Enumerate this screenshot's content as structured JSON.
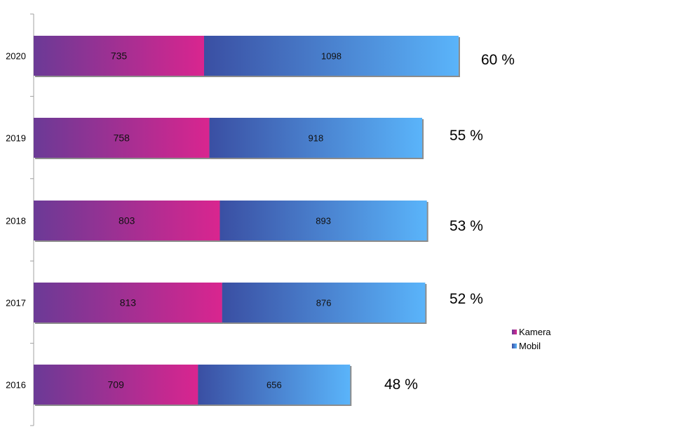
{
  "chart_data": {
    "type": "bar",
    "orientation": "horizontal",
    "stacked": true,
    "categories": [
      "2020",
      "2019",
      "2018",
      "2017",
      "2016"
    ],
    "series": [
      {
        "name": "Kamera",
        "values": [
          735,
          758,
          803,
          813,
          709
        ]
      },
      {
        "name": "Mobil",
        "values": [
          1098,
          918,
          893,
          876,
          656
        ]
      }
    ],
    "annotations": [
      "60 %",
      "55 %",
      "53 %",
      "52 %",
      "48 %"
    ],
    "xlim": [
      0,
      2500
    ],
    "grid": false,
    "legend_position": "right",
    "colors": {
      "Kamera": {
        "start": "#6b3a96",
        "end": "#d9258f"
      },
      "Mobil": {
        "start": "#3a4fa3",
        "end": "#5ab4fa"
      },
      "axis": "#a0a0a0"
    }
  }
}
